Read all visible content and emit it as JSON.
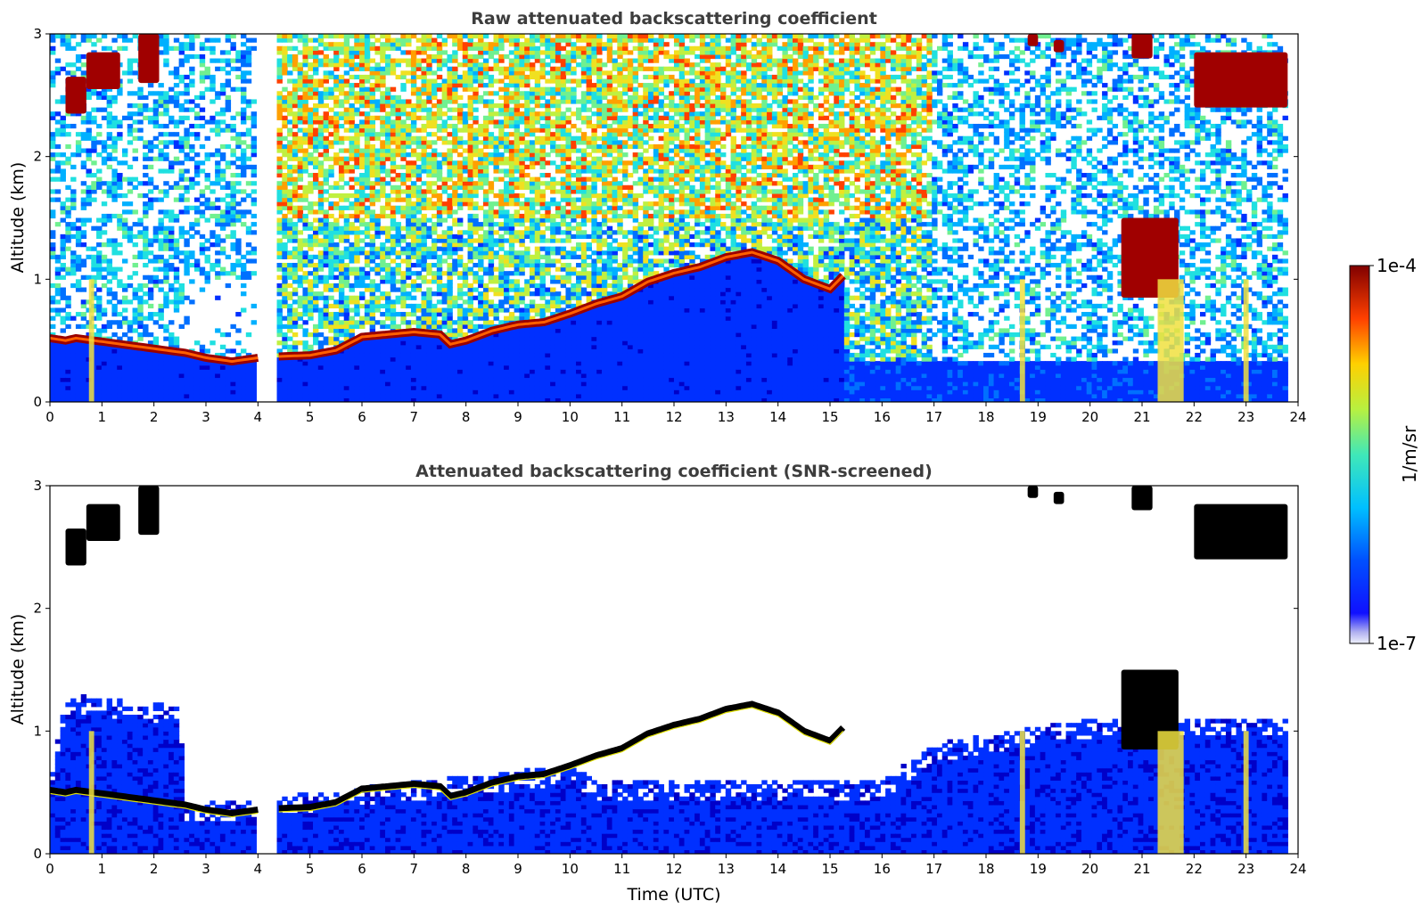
{
  "chart_data": [
    {
      "type": "heatmap",
      "title": "Raw attenuated backscattering coefficient",
      "xlabel": "",
      "ylabel": "Altitude (km)",
      "xlim": [
        0,
        24
      ],
      "ylim": [
        0,
        3
      ],
      "x_ticks": [
        0,
        1,
        2,
        3,
        4,
        5,
        6,
        7,
        8,
        9,
        10,
        11,
        12,
        13,
        14,
        15,
        16,
        17,
        18,
        19,
        20,
        21,
        22,
        23,
        24
      ],
      "y_ticks": [
        0,
        1,
        2,
        3
      ],
      "data_gap_hours": [
        4.0,
        4.35
      ],
      "data_end_hour": 23.8,
      "boundary_layer_top_km": [
        [
          0.0,
          0.52
        ],
        [
          0.3,
          0.5
        ],
        [
          0.5,
          0.52
        ],
        [
          2.6,
          0.4
        ],
        [
          3.0,
          0.36
        ],
        [
          3.5,
          0.33
        ],
        [
          4.0,
          0.36
        ],
        [
          4.35,
          0.37
        ],
        [
          5.0,
          0.38
        ],
        [
          5.5,
          0.42
        ],
        [
          6.0,
          0.53
        ],
        [
          6.5,
          0.55
        ],
        [
          7.0,
          0.57
        ],
        [
          7.5,
          0.55
        ],
        [
          7.7,
          0.47
        ],
        [
          8.0,
          0.5
        ],
        [
          8.5,
          0.58
        ],
        [
          9.0,
          0.63
        ],
        [
          9.5,
          0.65
        ],
        [
          10.0,
          0.72
        ],
        [
          10.5,
          0.8
        ],
        [
          11.0,
          0.86
        ],
        [
          11.5,
          0.98
        ],
        [
          12.0,
          1.05
        ],
        [
          12.5,
          1.1
        ],
        [
          13.0,
          1.18
        ],
        [
          13.5,
          1.22
        ],
        [
          14.0,
          1.15
        ],
        [
          14.5,
          1.0
        ],
        [
          15.0,
          0.92
        ],
        [
          15.3,
          1.05
        ]
      ],
      "cloud_layers_km": [
        {
          "x_start": 0.7,
          "x_end": 1.35,
          "y_top": 2.85,
          "y_bottom": 2.55
        },
        {
          "x_start": 1.7,
          "x_end": 2.1,
          "y_top": 3.0,
          "y_bottom": 2.6
        },
        {
          "x_start": 0.3,
          "x_end": 0.7,
          "y_top": 2.65,
          "y_bottom": 2.35
        },
        {
          "x_start": 18.8,
          "x_end": 19.0,
          "y_top": 3.0,
          "y_bottom": 2.9
        },
        {
          "x_start": 19.3,
          "x_end": 19.5,
          "y_top": 2.95,
          "y_bottom": 2.85
        },
        {
          "x_start": 20.8,
          "x_end": 21.2,
          "y_top": 3.0,
          "y_bottom": 2.8
        },
        {
          "x_start": 22.0,
          "x_end": 23.8,
          "y_top": 2.85,
          "y_bottom": 2.4
        },
        {
          "x_start": 20.6,
          "x_end": 21.7,
          "y_top": 1.5,
          "y_bottom": 0.85
        }
      ],
      "precipitation_shafts_hours": [
        [
          0.75,
          0.85
        ],
        [
          21.3,
          21.8
        ],
        [
          22.95,
          23.05
        ],
        [
          18.65,
          18.75
        ]
      ]
    },
    {
      "type": "heatmap",
      "title": "Attenuated backscattering coefficient (SNR-screened)",
      "xlabel": "Time (UTC)",
      "ylabel": "Altitude (km)",
      "xlim": [
        0,
        24
      ],
      "ylim": [
        0,
        3
      ],
      "x_ticks": [
        0,
        1,
        2,
        3,
        4,
        5,
        6,
        7,
        8,
        9,
        10,
        11,
        12,
        13,
        14,
        15,
        16,
        17,
        18,
        19,
        20,
        21,
        22,
        23,
        24
      ],
      "y_ticks": [
        0,
        1,
        2,
        3
      ],
      "screened_signal_top_km": [
        [
          0.0,
          0.6
        ],
        [
          0.3,
          1.3
        ],
        [
          2.5,
          1.2
        ],
        [
          2.6,
          0.4
        ],
        [
          4.0,
          0.45
        ],
        [
          4.35,
          0.47
        ],
        [
          10.0,
          0.72
        ],
        [
          10.5,
          0.6
        ],
        [
          15.3,
          0.6
        ],
        [
          16.0,
          0.6
        ],
        [
          17.0,
          0.9
        ],
        [
          20.0,
          1.1
        ],
        [
          23.8,
          1.1
        ]
      ]
    }
  ],
  "colorbar": {
    "label": "1/m/sr",
    "max_label": "1e-4",
    "min_label": "1e-7",
    "scale": "log",
    "colormap": "jet",
    "colors": [
      "#e8e8f8",
      "#0000ff",
      "#00a0ff",
      "#40e0c0",
      "#c0ff40",
      "#ffd000",
      "#ff3000",
      "#800000"
    ]
  }
}
